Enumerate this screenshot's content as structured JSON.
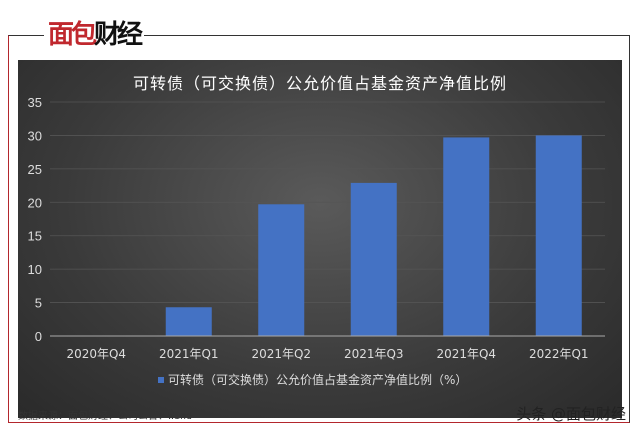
{
  "brand": {
    "logo_text": "面包财经",
    "watermark": "头条 @面包财经"
  },
  "source": "数据来源：面包财经、公司公告、Wind",
  "colors": {
    "bar": "#4472c4",
    "background": "#3a3a3a",
    "accent": "#b3272d"
  },
  "chart_data": {
    "type": "bar",
    "title": "可转债（可交换债）公允价值占基金资产净值比例",
    "categories": [
      "2020年Q4",
      "2021年Q1",
      "2021年Q2",
      "2021年Q3",
      "2021年Q4",
      "2022年Q1"
    ],
    "series": [
      {
        "name": "可转债（可交换债）公允价值占基金资产净值比例（%）",
        "values": [
          0,
          4.3,
          19.7,
          22.9,
          29.7,
          30.0
        ]
      }
    ],
    "ylim": [
      0,
      35
    ],
    "yticks": [
      0,
      5,
      10,
      15,
      20,
      25,
      30,
      35
    ],
    "grid": true,
    "legend": "bottom",
    "xlabel": "",
    "ylabel": ""
  }
}
